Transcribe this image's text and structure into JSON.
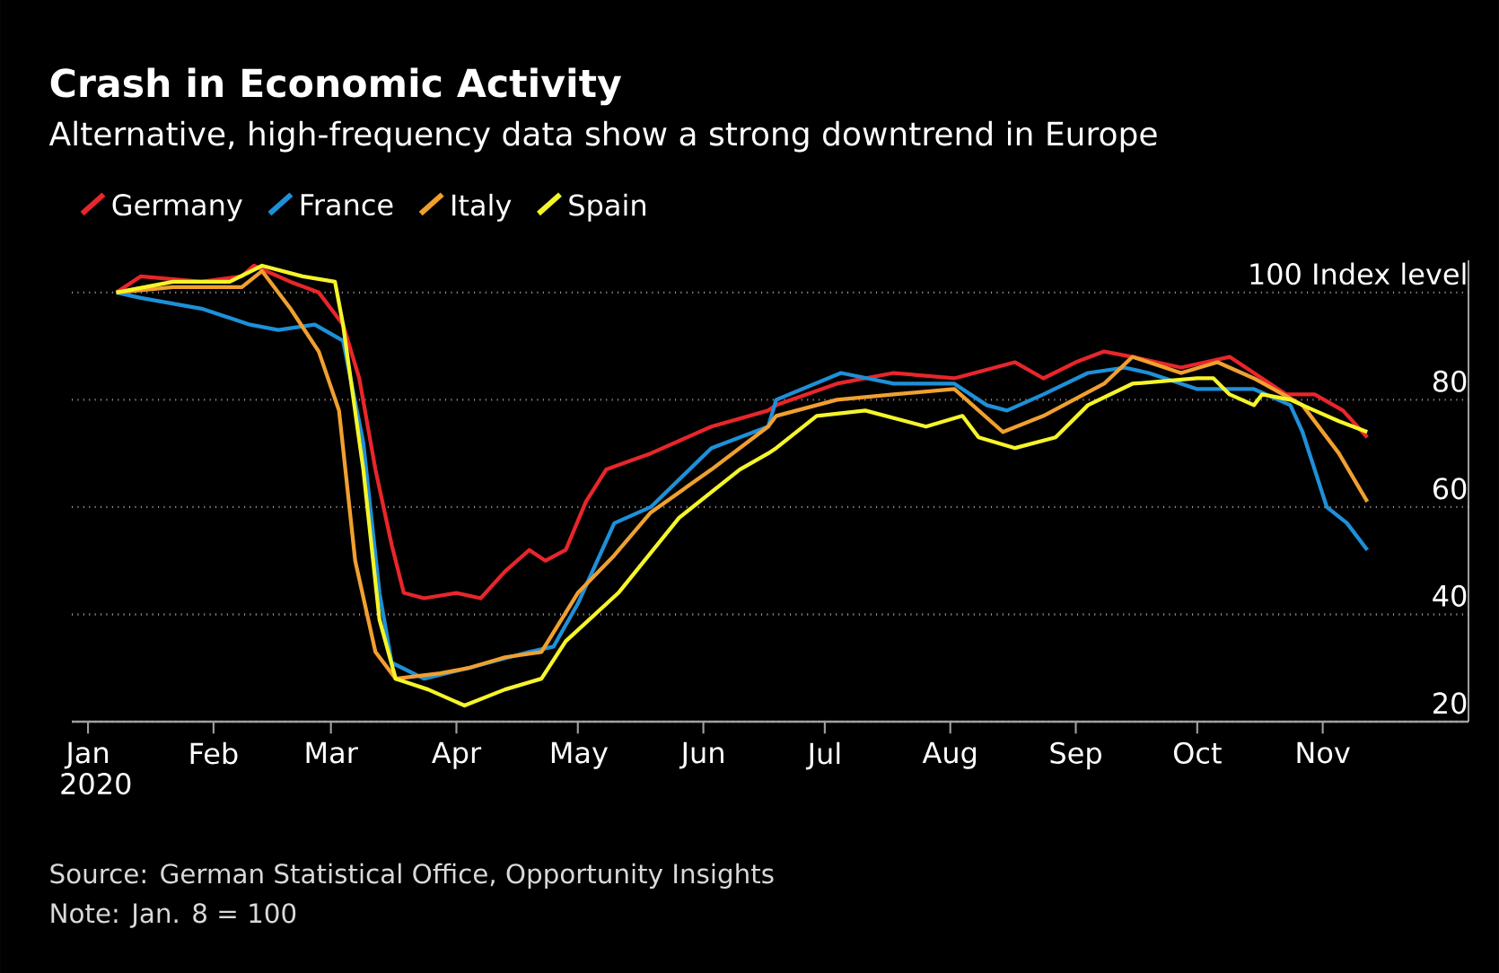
{
  "chart_data": {
    "type": "line",
    "title": "Crash in Economic Activity",
    "subtitle": "Alternative, high-frequency data show a strong downtrend in Europe",
    "annotations": [
      "Source: German Statistical Office, Opportunity Insights",
      "Note: Jan. 8 = 100"
    ],
    "xlim": [
      "2019-12-28",
      "2020-12-07"
    ],
    "ylim": [
      20,
      106
    ],
    "xticks": [
      {
        "value": "2020-01-01",
        "label": "Jan 2020"
      },
      {
        "value": "2020-02-01",
        "label": "Feb"
      },
      {
        "value": "2020-03-01",
        "label": "Mar"
      },
      {
        "value": "2020-04-01",
        "label": "Apr"
      },
      {
        "value": "2020-05-01",
        "label": "May"
      },
      {
        "value": "2020-06-01",
        "label": "Jun"
      },
      {
        "value": "2020-07-01",
        "label": "Jul"
      },
      {
        "value": "2020-08-01",
        "label": "Aug"
      },
      {
        "value": "2020-09-01",
        "label": "Sep"
      },
      {
        "value": "2020-10-01",
        "label": "Oct"
      },
      {
        "value": "2020-11-01",
        "label": "Nov"
      }
    ],
    "yticks": [
      20,
      40,
      60,
      80,
      {
        "value": 100,
        "label": "100 Index level"
      }
    ],
    "grid": "y",
    "legend": "top left",
    "series": [
      {
        "name": "Germany",
        "color": "#e8262b",
        "x": [
          "2020-01-08",
          "2020-01-14",
          "2020-01-29",
          "2020-02-08",
          "2020-02-11",
          "2020-02-20",
          "2020-02-27",
          "2020-03-04",
          "2020-03-08",
          "2020-03-12",
          "2020-03-16",
          "2020-03-19",
          "2020-03-24",
          "2020-04-01",
          "2020-04-07",
          "2020-04-13",
          "2020-04-19",
          "2020-04-23",
          "2020-04-28",
          "2020-05-03",
          "2020-05-08",
          "2020-05-19",
          "2020-06-03",
          "2020-06-17",
          "2020-06-19",
          "2020-07-04",
          "2020-07-18",
          "2020-08-02",
          "2020-08-17",
          "2020-08-24",
          "2020-09-01",
          "2020-09-08",
          "2020-09-15",
          "2020-09-27",
          "2020-10-09",
          "2020-10-23",
          "2020-10-30",
          "2020-11-06",
          "2020-11-12"
        ],
        "values": [
          100,
          103,
          102,
          103,
          105,
          102,
          100,
          94,
          84,
          67,
          53,
          44,
          43,
          44,
          43,
          48,
          52,
          50,
          52,
          61,
          67,
          70,
          75,
          78,
          79,
          83,
          85,
          84,
          87,
          84,
          87,
          89,
          88,
          86,
          88,
          81,
          81,
          78,
          73
        ]
      },
      {
        "name": "France",
        "color": "#1e90d8",
        "x": [
          "2020-01-08",
          "2020-01-14",
          "2020-01-29",
          "2020-02-10",
          "2020-02-17",
          "2020-02-26",
          "2020-03-04",
          "2020-03-09",
          "2020-03-13",
          "2020-03-16",
          "2020-03-24",
          "2020-04-04",
          "2020-04-19",
          "2020-04-25",
          "2020-05-01",
          "2020-05-10",
          "2020-05-19",
          "2020-06-03",
          "2020-06-17",
          "2020-06-19",
          "2020-07-05",
          "2020-07-18",
          "2020-08-02",
          "2020-08-10",
          "2020-08-15",
          "2020-08-24",
          "2020-09-04",
          "2020-09-13",
          "2020-09-19",
          "2020-10-01",
          "2020-10-15",
          "2020-10-24",
          "2020-10-27",
          "2020-11-02",
          "2020-11-07",
          "2020-11-12"
        ],
        "values": [
          100,
          99,
          97,
          94,
          93,
          94,
          91,
          72,
          44,
          31,
          28,
          30,
          33,
          34,
          42,
          57,
          60,
          71,
          75,
          80,
          85,
          83,
          83,
          79,
          78,
          81,
          85,
          86,
          85,
          82,
          82,
          79,
          74,
          60,
          57,
          52
        ]
      },
      {
        "name": "Italy",
        "color": "#f0a030",
        "x": [
          "2020-01-08",
          "2020-01-22",
          "2020-02-08",
          "2020-02-13",
          "2020-02-20",
          "2020-02-27",
          "2020-03-03",
          "2020-03-07",
          "2020-03-12",
          "2020-03-17",
          "2020-03-28",
          "2020-04-04",
          "2020-04-13",
          "2020-04-22",
          "2020-05-01",
          "2020-05-10",
          "2020-05-19",
          "2020-06-03",
          "2020-06-17",
          "2020-06-19",
          "2020-07-04",
          "2020-07-18",
          "2020-08-02",
          "2020-08-14",
          "2020-08-24",
          "2020-09-08",
          "2020-09-15",
          "2020-09-27",
          "2020-10-06",
          "2020-10-15",
          "2020-10-27",
          "2020-11-05",
          "2020-11-12"
        ],
        "values": [
          100,
          101,
          101,
          104,
          97,
          89,
          78,
          50,
          33,
          28,
          29,
          30,
          32,
          33,
          44,
          51,
          59,
          67,
          75,
          77,
          80,
          81,
          82,
          74,
          77,
          83,
          88,
          85,
          87,
          84,
          79,
          70,
          61
        ]
      },
      {
        "name": "Spain",
        "color": "#f5f52a",
        "x": [
          "2020-01-08",
          "2020-01-22",
          "2020-02-05",
          "2020-02-13",
          "2020-02-23",
          "2020-03-02",
          "2020-03-04",
          "2020-03-09",
          "2020-03-13",
          "2020-03-17",
          "2020-03-25",
          "2020-04-03",
          "2020-04-13",
          "2020-04-22",
          "2020-04-28",
          "2020-05-11",
          "2020-05-26",
          "2020-06-10",
          "2020-06-17",
          "2020-06-19",
          "2020-06-29",
          "2020-07-11",
          "2020-07-26",
          "2020-08-04",
          "2020-08-08",
          "2020-08-17",
          "2020-08-27",
          "2020-09-04",
          "2020-09-15",
          "2020-10-01",
          "2020-10-05",
          "2020-10-09",
          "2020-10-15",
          "2020-10-17",
          "2020-10-24",
          "2020-10-30",
          "2020-11-05",
          "2020-11-12"
        ],
        "values": [
          100,
          102,
          102,
          105,
          103,
          102,
          94,
          67,
          39,
          28,
          26,
          23,
          26,
          28,
          35,
          44,
          58,
          67,
          70,
          71,
          77,
          78,
          75,
          77,
          73,
          71,
          73,
          79,
          83,
          84,
          84,
          81,
          79,
          81,
          80,
          78,
          76,
          74
        ]
      }
    ]
  }
}
